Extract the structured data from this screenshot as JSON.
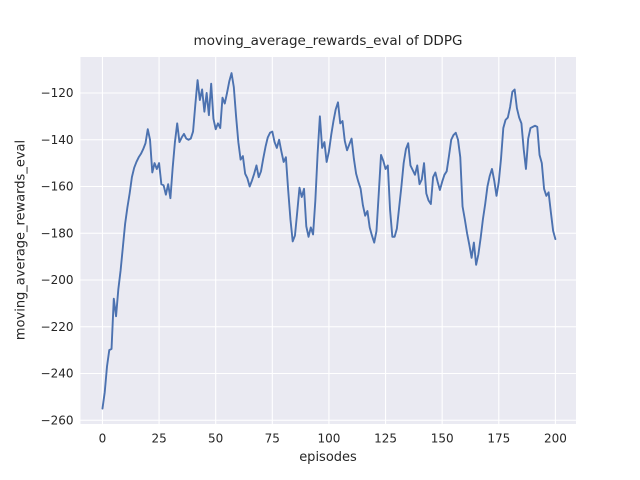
{
  "chart_data": {
    "type": "line",
    "title": "moving_average_rewards_eval of DDPG",
    "xlabel": "episodes",
    "ylabel": "moving_average_rewards_eval",
    "grid": true,
    "legend": null,
    "xticks": [
      0,
      25,
      50,
      75,
      100,
      125,
      150,
      175,
      200
    ],
    "xtick_labels": [
      "0",
      "25",
      "50",
      "75",
      "100",
      "125",
      "150",
      "175",
      "200"
    ],
    "yticks": [
      -120,
      -140,
      -160,
      -180,
      -200,
      -220,
      -240,
      -260
    ],
    "ytick_labels": [
      "−120",
      "−140",
      "−160",
      "−180",
      "−200",
      "−220",
      "−240",
      "−260"
    ],
    "xlim": [
      -9.7,
      209.1
    ],
    "ylim": [
      -261.6,
      -104.6
    ],
    "styles": {
      "figure_bg": "#ffffff",
      "axes_bg": "#EAEAF2",
      "grid_color": "#ffffff",
      "line_color": "#4C72B0",
      "text_color": "#262626"
    },
    "series": [
      {
        "name": "moving_average_rewards_eval",
        "color": "#4C72B0",
        "x": {
          "start": 0,
          "step": 1,
          "count": 201
        },
        "y": [
          -255,
          -248,
          -237,
          -230,
          -229.5,
          -208,
          -215.5,
          -204,
          -196,
          -186,
          -176,
          -169,
          -163,
          -156,
          -152,
          -149.5,
          -147.5,
          -146,
          -144,
          -141.5,
          -135.5,
          -140,
          -154,
          -150,
          -152.5,
          -150,
          -159,
          -159.5,
          -163.5,
          -159,
          -165,
          -152,
          -141,
          -133,
          -141,
          -139,
          -137.5,
          -139.5,
          -140,
          -139.5,
          -136.5,
          -125,
          -114.5,
          -123,
          -118.5,
          -128,
          -120,
          -129.5,
          -116,
          -131,
          -135.5,
          -133,
          -135,
          -122,
          -124.5,
          -120,
          -115,
          -111.5,
          -117.5,
          -130,
          -141,
          -148.5,
          -147,
          -154.5,
          -156.5,
          -160,
          -157.5,
          -154.5,
          -151,
          -156,
          -153.5,
          -148,
          -143,
          -139,
          -137,
          -136.5,
          -141,
          -143.5,
          -140,
          -145,
          -149.5,
          -147.5,
          -161.5,
          -174,
          -183.5,
          -181,
          -171,
          -160.5,
          -164.5,
          -161,
          -177,
          -181.5,
          -177.5,
          -180.5,
          -166,
          -146,
          -130,
          -143.5,
          -141,
          -149.5,
          -145,
          -138,
          -132,
          -127,
          -124,
          -133,
          -132,
          -140.5,
          -144.5,
          -142,
          -139.5,
          -148,
          -154.5,
          -158,
          -161,
          -168,
          -172.5,
          -170.5,
          -177.5,
          -181,
          -184,
          -179,
          -163,
          -146.5,
          -149,
          -152.5,
          -151,
          -170,
          -181.5,
          -181.5,
          -178,
          -169,
          -160,
          -150,
          -144,
          -141.5,
          -151,
          -153,
          -155,
          -151,
          -159,
          -157,
          -150,
          -163,
          -166,
          -167.5,
          -156,
          -154,
          -158,
          -161.5,
          -158,
          -155,
          -153.5,
          -147,
          -140,
          -138,
          -137,
          -140,
          -147.5,
          -168.5,
          -174,
          -180,
          -185,
          -190.5,
          -184,
          -193.5,
          -189,
          -182,
          -174,
          -167.5,
          -160,
          -155.5,
          -152.5,
          -157.5,
          -164,
          -158,
          -148,
          -135,
          -131.5,
          -130.5,
          -126,
          -119.5,
          -118.5,
          -126.5,
          -130.5,
          -133,
          -144,
          -152.5,
          -139.5,
          -135,
          -134.5,
          -134,
          -134.5,
          -146.5,
          -150,
          -161,
          -164,
          -162.5,
          -171,
          -179,
          -182.5
        ]
      }
    ]
  }
}
